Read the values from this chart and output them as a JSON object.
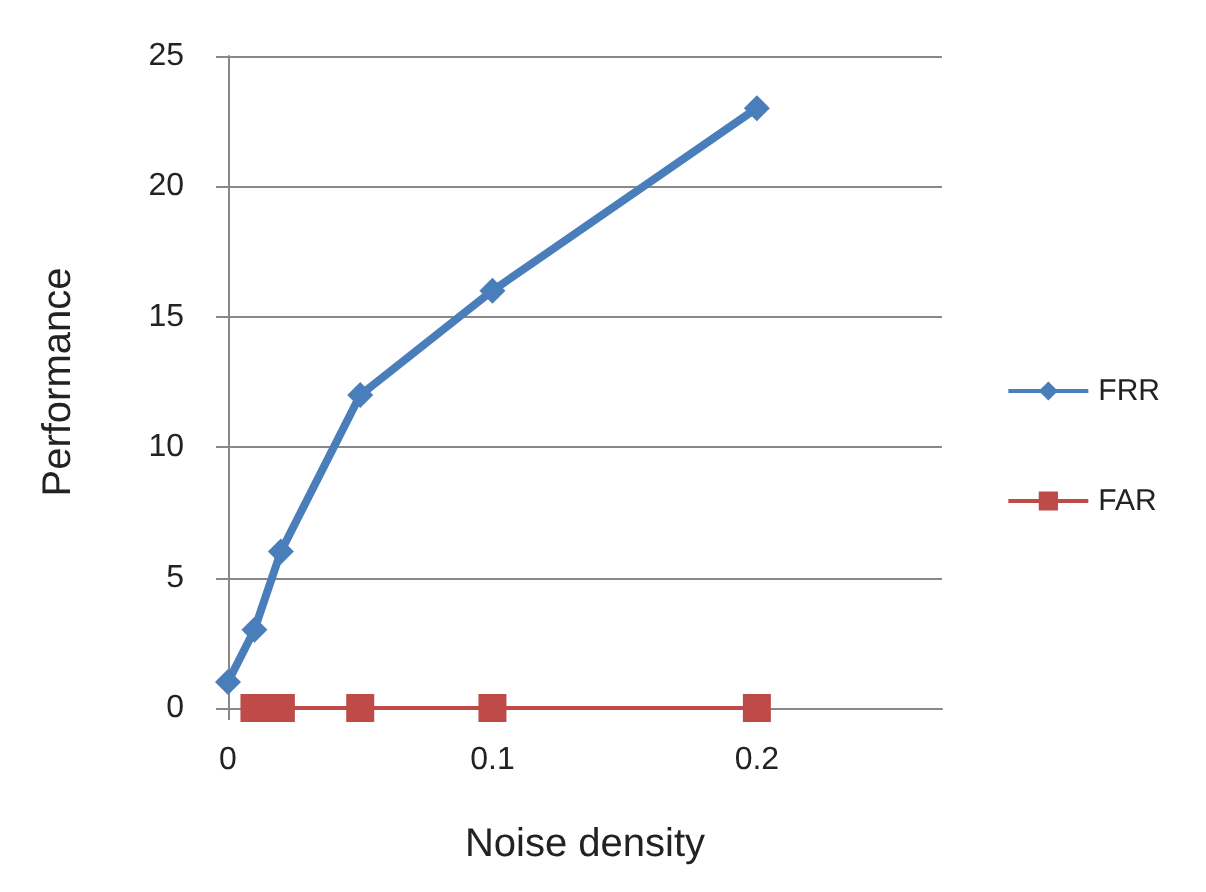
{
  "chart_data": {
    "type": "line",
    "xlabel": "Noise density",
    "ylabel": "Performance",
    "xlim": [
      0,
      0.27
    ],
    "xticks": [
      0,
      0.1,
      0.2
    ],
    "ylim": [
      0,
      25
    ],
    "yticks": [
      0,
      5,
      10,
      15,
      20,
      25
    ],
    "grid": "y",
    "legend": "right",
    "series": [
      {
        "name": "FRR",
        "color": "#4a7ebb",
        "marker": "diamond",
        "x": [
          0,
          0.01,
          0.02,
          0.05,
          0.1,
          0.2
        ],
        "values": [
          1,
          3,
          6,
          12,
          16,
          23
        ]
      },
      {
        "name": "FAR",
        "color": "#be4b48",
        "marker": "square",
        "x": [
          0.01,
          0.02,
          0.05,
          0.1,
          0.2
        ],
        "values": [
          0,
          0,
          0,
          0,
          0
        ]
      }
    ]
  }
}
